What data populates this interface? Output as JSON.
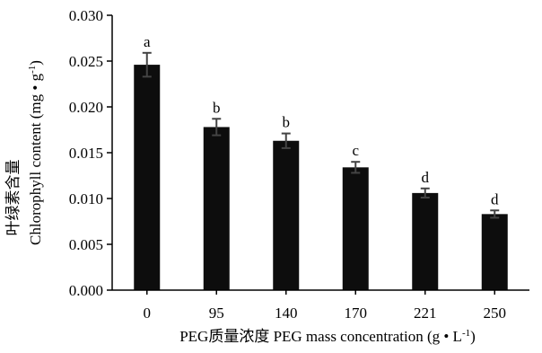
{
  "chart_data": {
    "type": "bar",
    "categories": [
      "0",
      "95",
      "140",
      "170",
      "221",
      "250"
    ],
    "values": [
      0.0246,
      0.0178,
      0.0163,
      0.0134,
      0.0106,
      0.0083
    ],
    "errors": [
      0.0013,
      0.0009,
      0.0008,
      0.0006,
      0.0005,
      0.0004
    ],
    "significance": [
      "a",
      "b",
      "b",
      "c",
      "d",
      "d"
    ],
    "ylim": [
      0,
      0.03
    ],
    "yticks": [
      "0.000",
      "0.005",
      "0.010",
      "0.015",
      "0.020",
      "0.025",
      "0.030"
    ],
    "ylabel_cn": "叶绿素含量",
    "ylabel_en": "Chlorophyll content (mg • g",
    "ylabel_sup": "-1",
    "ylabel_end": ")",
    "xlabel_main": "PEG质量浓度  PEG mass concentration (g • L",
    "xlabel_sup": "-1",
    "xlabel_end": ")",
    "grid": false,
    "bar_color": "#0d0d0d",
    "error_color": "#444444"
  }
}
